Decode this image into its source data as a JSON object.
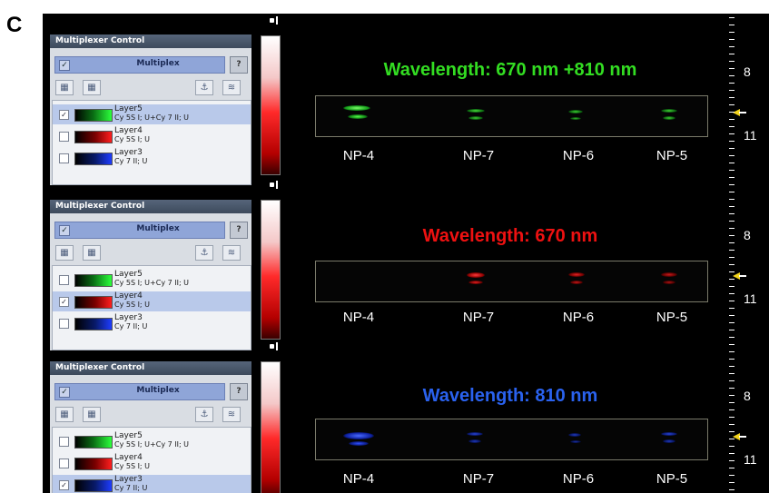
{
  "panel_letter": "C",
  "control": {
    "title": "Multiplexer Control",
    "multiplex_label": "Multiplex",
    "help_label": "?",
    "layers": [
      {
        "name": "Layer5",
        "sub": "Cy 5S I; U+Cy 7 II; U",
        "swatch": "green"
      },
      {
        "name": "Layer4",
        "sub": "Cy 5S I; U",
        "swatch": "red"
      },
      {
        "name": "Layer3",
        "sub": "Cy 7 II; U",
        "swatch": "blue"
      }
    ]
  },
  "rows": [
    {
      "title": "Wavelength: 670 nm +810 nm",
      "color": "#33dd22",
      "selected_layer": "Layer5",
      "labels": [
        "NP-4",
        "NP-7",
        "NP-6",
        "NP-5"
      ]
    },
    {
      "title": "Wavelength: 670 nm",
      "color": "#ee1111",
      "selected_layer": "Layer4",
      "labels": [
        "NP-4",
        "NP-7",
        "NP-6",
        "NP-5"
      ]
    },
    {
      "title": "Wavelength: 810 nm",
      "color": "#2a62ee",
      "selected_layer": "Layer3",
      "labels": [
        "NP-4",
        "NP-7",
        "NP-6",
        "NP-5"
      ]
    }
  ],
  "scale": {
    "label_top": "8",
    "label_bottom": "11"
  }
}
